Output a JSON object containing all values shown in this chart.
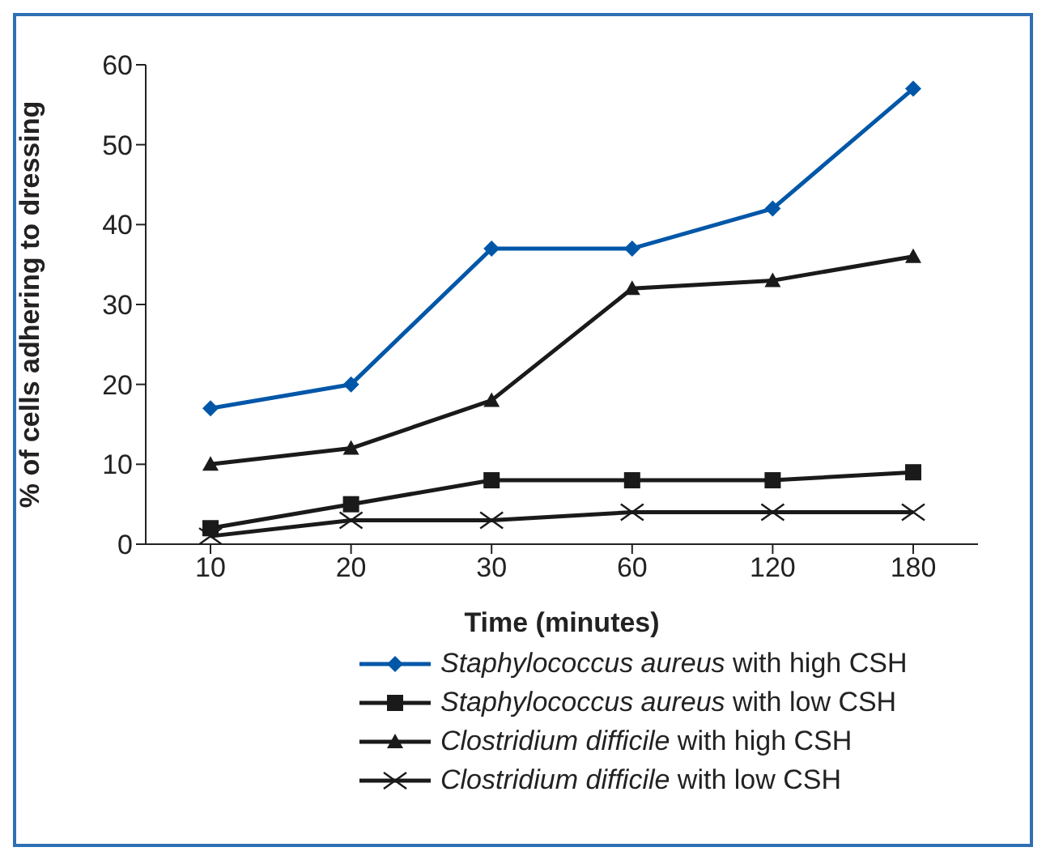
{
  "chart_data": {
    "type": "line",
    "xlabel": "Time (minutes)",
    "ylabel": "% of cells adhering to dressing",
    "categories": [
      "10",
      "20",
      "30",
      "60",
      "120",
      "180"
    ],
    "series": [
      {
        "name": "Staphylococcus aureus with high CSH",
        "color": "#0057a8",
        "marker": "diamond",
        "values": [
          17,
          20,
          37,
          37,
          42,
          57
        ]
      },
      {
        "name": "Staphylococcus aureus with low CSH",
        "color": "#1a1a1a",
        "marker": "square",
        "values": [
          2,
          5,
          8,
          8,
          8,
          9
        ]
      },
      {
        "name": "Clostridium difficile with high CSH",
        "color": "#1a1a1a",
        "marker": "triangle",
        "values": [
          10,
          12,
          18,
          32,
          33,
          36
        ]
      },
      {
        "name": "Clostridium difficile with low CSH",
        "color": "#1a1a1a",
        "marker": "cross",
        "values": [
          1,
          3,
          3,
          4,
          4,
          4
        ]
      }
    ],
    "ylim": [
      0,
      60
    ],
    "yticks": [
      0,
      10,
      20,
      30,
      40,
      50,
      60
    ],
    "grid": false,
    "legend": "bottom"
  }
}
